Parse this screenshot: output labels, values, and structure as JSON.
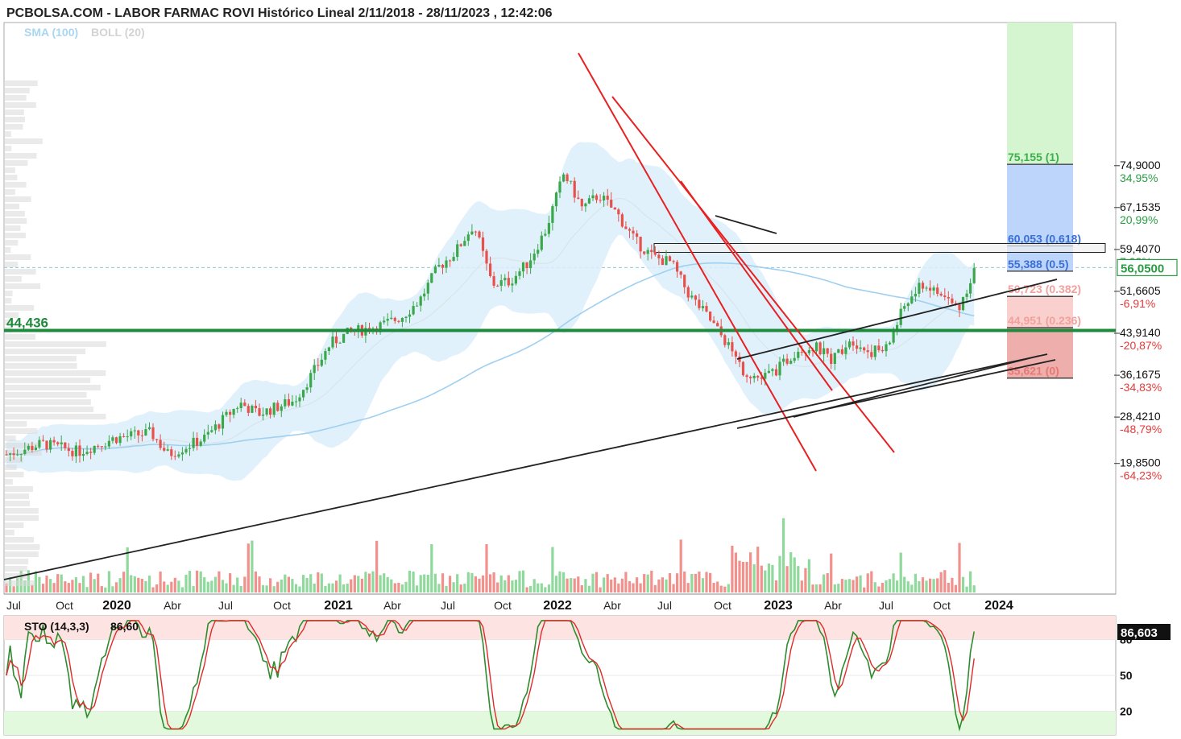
{
  "header": {
    "title": "PCBOLSA.COM - LABOR FARMAC ROVI Histórico Lineal 2/11/2018 - 28/11/2023 , 12:42:06",
    "indicator_sma": "SMA (100)",
    "indicator_boll": "BOLL (20)"
  },
  "colors": {
    "up": "#3aa84a",
    "down": "#e8504a",
    "up_vol": "#8ed99b",
    "down_vol": "#f2908c",
    "boll_fill": "#dceefb",
    "sma": "#9fd0f0",
    "support": "#1e8a3c",
    "trend_red": "#e82020",
    "trend_black": "#222222"
  },
  "chart_data": [
    {
      "type": "candlestick",
      "title": "LABOR FARMAC ROVI",
      "x_ticks": [
        "Jul",
        "Oct",
        "2020",
        "Abr",
        "Jul",
        "Oct",
        "2021",
        "Abr",
        "Jul",
        "Oct",
        "2022",
        "Abr",
        "Jul",
        "Oct",
        "2023",
        "Abr",
        "Jul",
        "Oct",
        "2024"
      ],
      "y_ticks": [
        {
          "value": "74,9000",
          "pct": "34,95%"
        },
        {
          "value": "67,1535",
          "pct": "20,99%"
        },
        {
          "value": "59,4070",
          "pct": "7,03%"
        },
        {
          "value": "51,6605",
          "pct": "-6,91%"
        },
        {
          "value": "43,9140",
          "pct": "-20,87%"
        },
        {
          "value": "36,1675",
          "pct": "-34,83%"
        },
        {
          "value": "28,4210",
          "pct": "-48,79%"
        },
        {
          "value": "19,8500",
          "pct": "-64,23%"
        }
      ],
      "last_price": "56,0500",
      "support_label": "44,436",
      "support_value": 44.436,
      "ylim": [
        17.5,
        79
      ],
      "fibonacci": [
        {
          "label": "75,155 (1)",
          "value": 75.155
        },
        {
          "label": "60,053 (0.618)",
          "value": 60.053
        },
        {
          "label": "55,388 (0.5)",
          "value": 55.388
        },
        {
          "label": "50,723 (0.382)",
          "value": 50.723
        },
        {
          "label": "44,951 (0.236)",
          "value": 44.951
        },
        {
          "label": "35,621 (0)",
          "value": 35.621
        }
      ],
      "price_path": [
        {
          "date": "2019-06",
          "value": 21.5
        },
        {
          "date": "2019-08",
          "value": 23.5
        },
        {
          "date": "2019-10",
          "value": 22.0
        },
        {
          "date": "2019-12",
          "value": 24.5
        },
        {
          "date": "2020-02",
          "value": 25.5
        },
        {
          "date": "2020-03",
          "value": 21.5
        },
        {
          "date": "2020-05",
          "value": 24.5
        },
        {
          "date": "2020-07",
          "value": 31.0
        },
        {
          "date": "2020-08",
          "value": 29.0
        },
        {
          "date": "2020-10",
          "value": 31.5
        },
        {
          "date": "2020-11",
          "value": 36.5
        },
        {
          "date": "2020-12",
          "value": 42.0
        },
        {
          "date": "2021-01",
          "value": 44.0
        },
        {
          "date": "2021-03",
          "value": 45.5
        },
        {
          "date": "2021-04",
          "value": 47.0
        },
        {
          "date": "2021-05",
          "value": 50.0
        },
        {
          "date": "2021-06",
          "value": 56.0
        },
        {
          "date": "2021-07",
          "value": 59.0
        },
        {
          "date": "2021-08",
          "value": 64.0
        },
        {
          "date": "2021-09",
          "value": 53.0
        },
        {
          "date": "2021-10",
          "value": 53.5
        },
        {
          "date": "2021-11",
          "value": 57.0
        },
        {
          "date": "2021-12",
          "value": 63.0
        },
        {
          "date": "2022-01",
          "value": 73.5
        },
        {
          "date": "2022-02",
          "value": 67.0
        },
        {
          "date": "2022-03",
          "value": 69.5
        },
        {
          "date": "2022-04",
          "value": 66.0
        },
        {
          "date": "2022-05",
          "value": 61.0
        },
        {
          "date": "2022-06",
          "value": 58.0
        },
        {
          "date": "2022-07",
          "value": 57.0
        },
        {
          "date": "2022-08",
          "value": 51.0
        },
        {
          "date": "2022-09",
          "value": 47.0
        },
        {
          "date": "2022-10",
          "value": 42.5
        },
        {
          "date": "2022-11",
          "value": 37.0
        },
        {
          "date": "2022-12",
          "value": 35.5
        },
        {
          "date": "2023-01",
          "value": 37.5
        },
        {
          "date": "2023-02",
          "value": 41.0
        },
        {
          "date": "2023-03",
          "value": 41.5
        },
        {
          "date": "2023-04",
          "value": 39.0
        },
        {
          "date": "2023-05",
          "value": 43.0
        },
        {
          "date": "2023-06",
          "value": 40.5
        },
        {
          "date": "2023-07",
          "value": 41.0
        },
        {
          "date": "2023-08",
          "value": 49.0
        },
        {
          "date": "2023-09",
          "value": 53.0
        },
        {
          "date": "2023-10",
          "value": 51.0
        },
        {
          "date": "2023-11",
          "value": 48.5
        },
        {
          "date": "2023-11-28",
          "value": 56.05
        }
      ]
    },
    {
      "type": "line",
      "title": "STO (14,3,3)",
      "value_label": "86,60",
      "current_value": "86,603",
      "y_ticks": [
        "80",
        "50",
        "20"
      ],
      "ylim": [
        0,
        100
      ]
    }
  ]
}
